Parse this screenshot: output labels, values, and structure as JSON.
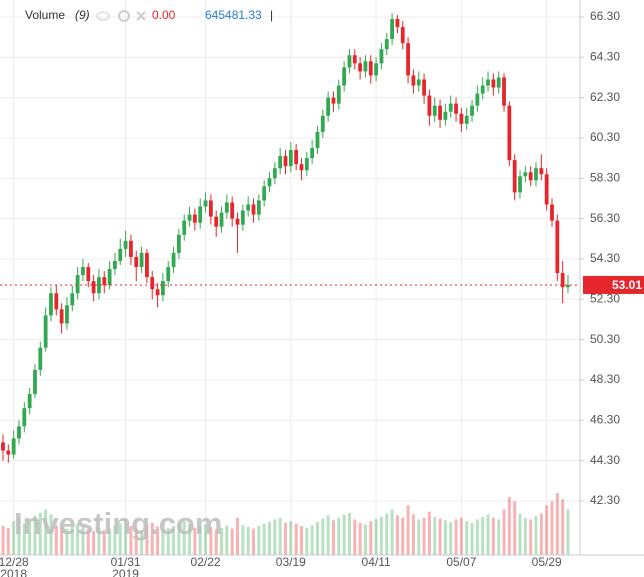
{
  "chart_data": {
    "type": "candlestick",
    "legend": {
      "name": "Volume",
      "period": "(9)",
      "value": "0.00",
      "ma_value": "645481.33",
      "cursor": "|"
    },
    "watermark": "Investing.com",
    "up_color": "#33a852",
    "down_color": "#e5262c",
    "last_price": 53.01,
    "ylim": [
      39.62,
      67.14
    ],
    "yticks": [
      {
        "value": 66.3,
        "label": "66.30"
      },
      {
        "value": 64.3,
        "label": "64.30"
      },
      {
        "value": 62.3,
        "label": "62.30"
      },
      {
        "value": 60.3,
        "label": "60.30"
      },
      {
        "value": 58.3,
        "label": "58.30"
      },
      {
        "value": 56.3,
        "label": "56.30"
      },
      {
        "value": 54.3,
        "label": "54.30"
      },
      {
        "value": 52.3,
        "label": "52.30"
      },
      {
        "value": 50.3,
        "label": "50.30"
      },
      {
        "value": 48.3,
        "label": "48.30"
      },
      {
        "value": 46.3,
        "label": "46.30"
      },
      {
        "value": 44.3,
        "label": "44.30"
      },
      {
        "value": 42.3,
        "label": "42.30"
      }
    ],
    "xticks": [
      {
        "value": 2,
        "label": "12/28"
      },
      {
        "value": 23,
        "label": "01/31"
      },
      {
        "value": 38,
        "label": "02/22"
      },
      {
        "value": 54,
        "label": "03/19"
      },
      {
        "value": 70,
        "label": "04/11"
      },
      {
        "value": 86,
        "label": "05/07"
      },
      {
        "value": 102,
        "label": "05/29"
      }
    ],
    "year_labels": [
      {
        "value": 2,
        "label": "2018"
      },
      {
        "value": 23,
        "label": "2019"
      }
    ],
    "grid": true,
    "ohlc": [
      [
        45.2,
        45.6,
        44.3,
        44.8
      ],
      [
        44.8,
        45.1,
        44.2,
        44.6
      ],
      [
        44.6,
        45.8,
        44.4,
        45.4
      ],
      [
        45.4,
        46.3,
        45.1,
        46.0
      ],
      [
        46.0,
        47.2,
        45.7,
        46.9
      ],
      [
        46.9,
        47.9,
        46.6,
        47.6
      ],
      [
        47.6,
        49.1,
        47.4,
        48.8
      ],
      [
        48.8,
        50.2,
        48.5,
        49.9
      ],
      [
        49.9,
        51.9,
        49.7,
        51.5
      ],
      [
        51.5,
        52.9,
        51.2,
        52.6
      ],
      [
        52.6,
        53.0,
        51.5,
        51.8
      ],
      [
        51.8,
        52.1,
        50.6,
        51.1
      ],
      [
        51.1,
        52.4,
        50.8,
        52.0
      ],
      [
        52.0,
        53.0,
        51.7,
        52.6
      ],
      [
        52.6,
        53.9,
        52.3,
        53.5
      ],
      [
        53.5,
        54.3,
        53.2,
        53.9
      ],
      [
        53.9,
        54.1,
        52.9,
        53.2
      ],
      [
        53.2,
        53.5,
        52.2,
        52.6
      ],
      [
        52.6,
        53.8,
        52.3,
        53.4
      ],
      [
        53.4,
        53.7,
        52.6,
        53.0
      ],
      [
        53.0,
        54.2,
        52.8,
        53.8
      ],
      [
        53.8,
        54.6,
        53.5,
        54.2
      ],
      [
        54.2,
        55.3,
        54.0,
        54.8
      ],
      [
        54.8,
        55.7,
        54.4,
        55.2
      ],
      [
        55.2,
        55.5,
        54.0,
        54.4
      ],
      [
        54.4,
        54.7,
        53.2,
        53.9
      ],
      [
        53.9,
        54.9,
        53.6,
        54.6
      ],
      [
        54.6,
        54.8,
        53.1,
        53.4
      ],
      [
        53.4,
        53.7,
        52.3,
        52.8
      ],
      [
        52.8,
        53.1,
        51.9,
        52.5
      ],
      [
        52.5,
        53.6,
        52.2,
        53.2
      ],
      [
        53.2,
        54.2,
        52.9,
        53.9
      ],
      [
        53.9,
        54.9,
        53.6,
        54.6
      ],
      [
        54.6,
        55.8,
        54.3,
        55.5
      ],
      [
        55.5,
        56.5,
        55.2,
        56.2
      ],
      [
        56.2,
        56.9,
        55.9,
        56.5
      ],
      [
        56.5,
        56.8,
        55.7,
        56.1
      ],
      [
        56.1,
        57.3,
        55.8,
        56.9
      ],
      [
        56.9,
        57.6,
        56.6,
        57.2
      ],
      [
        57.2,
        57.5,
        56.0,
        56.4
      ],
      [
        56.4,
        56.7,
        55.4,
        55.9
      ],
      [
        55.9,
        56.9,
        55.6,
        56.6
      ],
      [
        56.6,
        57.5,
        56.3,
        57.1
      ],
      [
        57.1,
        57.4,
        55.9,
        56.3
      ],
      [
        56.3,
        56.6,
        54.6,
        56.0
      ],
      [
        56.0,
        57.0,
        55.7,
        56.7
      ],
      [
        56.7,
        57.4,
        56.4,
        57.0
      ],
      [
        57.0,
        57.3,
        56.1,
        56.5
      ],
      [
        56.5,
        57.5,
        56.2,
        57.2
      ],
      [
        57.2,
        58.2,
        56.9,
        57.9
      ],
      [
        57.9,
        58.6,
        57.6,
        58.3
      ],
      [
        58.3,
        59.1,
        58.0,
        58.8
      ],
      [
        58.8,
        59.8,
        58.5,
        59.4
      ],
      [
        59.4,
        59.7,
        58.5,
        58.9
      ],
      [
        58.9,
        60.1,
        58.6,
        59.7
      ],
      [
        59.7,
        60.0,
        58.7,
        59.0
      ],
      [
        59.0,
        59.3,
        58.2,
        58.7
      ],
      [
        58.7,
        59.6,
        58.4,
        59.3
      ],
      [
        59.3,
        60.2,
        59.0,
        59.8
      ],
      [
        59.8,
        60.9,
        59.5,
        60.6
      ],
      [
        60.6,
        61.7,
        60.3,
        61.4
      ],
      [
        61.4,
        62.6,
        61.1,
        62.3
      ],
      [
        62.3,
        62.6,
        61.6,
        62.0
      ],
      [
        62.0,
        63.2,
        61.7,
        62.9
      ],
      [
        62.9,
        64.1,
        62.6,
        63.8
      ],
      [
        63.8,
        64.7,
        63.5,
        64.4
      ],
      [
        64.4,
        64.7,
        63.7,
        64.0
      ],
      [
        64.0,
        64.3,
        63.2,
        63.6
      ],
      [
        63.6,
        64.4,
        63.3,
        64.1
      ],
      [
        64.1,
        64.4,
        63.0,
        63.4
      ],
      [
        63.4,
        64.3,
        63.1,
        64.0
      ],
      [
        64.0,
        65.0,
        63.7,
        64.7
      ],
      [
        64.7,
        65.5,
        64.4,
        65.2
      ],
      [
        65.2,
        66.5,
        64.9,
        66.2
      ],
      [
        66.2,
        66.4,
        65.5,
        65.8
      ],
      [
        65.8,
        66.1,
        64.7,
        65.0
      ],
      [
        65.0,
        65.3,
        63.0,
        63.4
      ],
      [
        63.4,
        63.7,
        62.5,
        62.9
      ],
      [
        62.9,
        63.6,
        62.6,
        63.2
      ],
      [
        63.2,
        63.5,
        62.0,
        62.4
      ],
      [
        62.4,
        62.7,
        60.9,
        61.4
      ],
      [
        61.4,
        62.3,
        61.1,
        61.9
      ],
      [
        61.9,
        62.2,
        60.8,
        61.2
      ],
      [
        61.2,
        62.0,
        60.9,
        61.6
      ],
      [
        61.6,
        62.4,
        61.3,
        62.0
      ],
      [
        62.0,
        62.3,
        61.1,
        61.5
      ],
      [
        61.5,
        61.8,
        60.6,
        61.0
      ],
      [
        61.0,
        61.8,
        60.7,
        61.4
      ],
      [
        61.4,
        62.2,
        61.1,
        61.9
      ],
      [
        61.9,
        62.9,
        61.6,
        62.5
      ],
      [
        62.5,
        63.3,
        62.2,
        62.9
      ],
      [
        62.9,
        63.6,
        62.6,
        63.2
      ],
      [
        63.2,
        63.5,
        62.4,
        62.8
      ],
      [
        62.8,
        63.6,
        62.5,
        63.3
      ],
      [
        63.3,
        63.5,
        61.6,
        61.9
      ],
      [
        61.9,
        62.1,
        58.9,
        59.2
      ],
      [
        59.2,
        59.5,
        57.2,
        57.6
      ],
      [
        57.6,
        58.7,
        57.3,
        58.4
      ],
      [
        58.4,
        58.9,
        58.1,
        58.6
      ],
      [
        58.6,
        58.9,
        57.9,
        58.2
      ],
      [
        58.2,
        59.1,
        57.9,
        58.8
      ],
      [
        58.8,
        59.5,
        58.2,
        58.5
      ],
      [
        58.5,
        58.8,
        56.7,
        57.0
      ],
      [
        57.0,
        57.3,
        55.9,
        56.2
      ],
      [
        56.2,
        56.5,
        53.2,
        53.6
      ],
      [
        53.6,
        54.2,
        52.1,
        52.9
      ],
      [
        52.9,
        53.5,
        52.6,
        53.01
      ]
    ],
    "volume": [
      700000,
      650000,
      820000,
      900000,
      760000,
      880000,
      950000,
      1020000,
      1100000,
      980000,
      720000,
      680000,
      640000,
      700000,
      760000,
      690000,
      620000,
      580000,
      650000,
      600000,
      640000,
      700000,
      760000,
      820000,
      700000,
      650000,
      600000,
      720000,
      780000,
      690000,
      610000,
      650000,
      700000,
      760000,
      820000,
      740000,
      660000,
      700000,
      750000,
      680000,
      620000,
      660000,
      710000,
      640000,
      900000,
      720000,
      680000,
      640000,
      700000,
      760000,
      800000,
      860000,
      900000,
      780000,
      820000,
      760000,
      700000,
      660000,
      720000,
      800000,
      880000,
      960000,
      840000,
      900000,
      980000,
      1020000,
      860000,
      780000,
      740000,
      820000,
      880000,
      920000,
      1000000,
      1100000,
      960000,
      900000,
      1200000,
      980000,
      860000,
      900000,
      1050000,
      920000,
      880000,
      840000,
      800000,
      860000,
      900000,
      820000,
      780000,
      860000,
      920000,
      980000,
      900000,
      860000,
      1100000,
      1400000,
      1300000,
      1000000,
      900000,
      860000,
      940000,
      1000000,
      1200000,
      1300000,
      1500000,
      1350000,
      1100000
    ]
  }
}
